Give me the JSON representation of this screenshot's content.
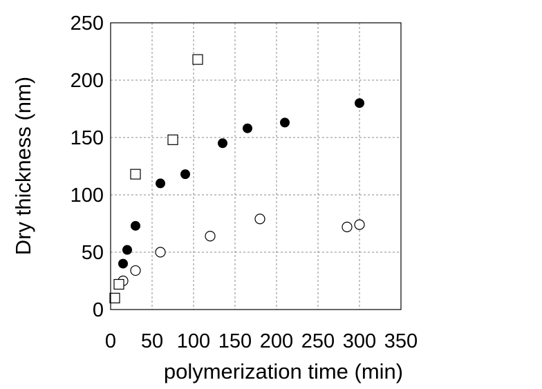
{
  "chart_data": {
    "type": "scatter",
    "xlabel": "polymerization time (min)",
    "ylabel": "Dry thickness (nm)",
    "xlim": [
      0,
      350
    ],
    "ylim": [
      0,
      250
    ],
    "xticks": [
      0,
      50,
      100,
      150,
      200,
      250,
      300,
      350
    ],
    "yticks": [
      0,
      50,
      100,
      150,
      200,
      250
    ],
    "grid": true,
    "series": [
      {
        "marker": "filled-circle",
        "color": "#000000",
        "x": [
          15,
          20,
          30,
          60,
          90,
          135,
          165,
          210,
          300
        ],
        "y": [
          40,
          52,
          73,
          110,
          118,
          145,
          158,
          163,
          180
        ]
      },
      {
        "marker": "open-circle",
        "color": "#000000",
        "x": [
          15,
          30,
          60,
          120,
          180,
          285,
          300
        ],
        "y": [
          25,
          34,
          50,
          64,
          79,
          72,
          74
        ]
      },
      {
        "marker": "open-square",
        "color": "#000000",
        "x": [
          5,
          10,
          30,
          75,
          105
        ],
        "y": [
          10,
          22,
          118,
          148,
          218
        ]
      }
    ]
  }
}
